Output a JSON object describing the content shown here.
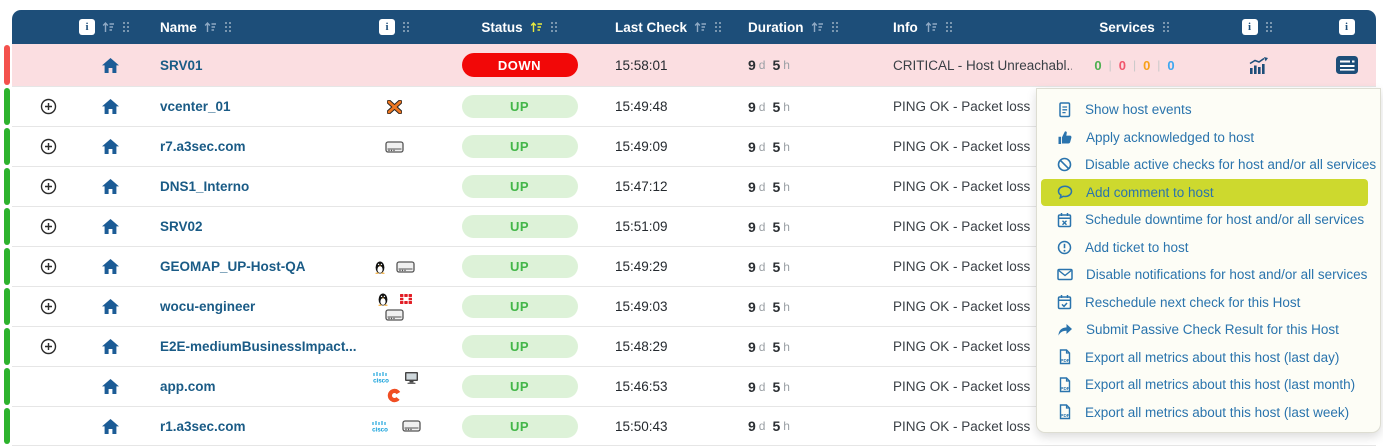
{
  "header": {
    "info_badge": "i",
    "columns": {
      "name": "Name",
      "status": "Status",
      "last_check": "Last Check",
      "duration": "Duration",
      "info": "Info",
      "services": "Services"
    }
  },
  "duration_units": {
    "days": "d",
    "hours": "h"
  },
  "rows": [
    {
      "name": "SRV01",
      "expand": false,
      "os_icons": [],
      "status": "DOWN",
      "status_style": "down",
      "last_check": "15:58:01",
      "duration_days": "9",
      "duration_hours": "5",
      "info": "CRITICAL - Host Unreachabl...",
      "services_counts": [
        "0",
        "0",
        "0",
        "0"
      ],
      "show_actions": true
    },
    {
      "name": "vcenter_01",
      "expand": true,
      "os_icons": [
        "esx-icon"
      ],
      "status": "UP",
      "status_style": "up",
      "last_check": "15:49:48",
      "duration_days": "9",
      "duration_hours": "5",
      "info": "PING OK - Packet loss",
      "services_counts": [],
      "show_actions": false
    },
    {
      "name": "r7.a3sec.com",
      "expand": true,
      "os_icons": [
        "server-icon"
      ],
      "status": "UP",
      "status_style": "up",
      "last_check": "15:49:09",
      "duration_days": "9",
      "duration_hours": "5",
      "info": "PING OK - Packet loss",
      "services_counts": [],
      "show_actions": false
    },
    {
      "name": "DNS1_Interno",
      "expand": true,
      "os_icons": [],
      "status": "UP",
      "status_style": "up",
      "last_check": "15:47:12",
      "duration_days": "9",
      "duration_hours": "5",
      "info": "PING OK - Packet loss",
      "services_counts": [],
      "show_actions": false
    },
    {
      "name": "SRV02",
      "expand": true,
      "os_icons": [],
      "status": "UP",
      "status_style": "up",
      "last_check": "15:51:09",
      "duration_days": "9",
      "duration_hours": "5",
      "info": "PING OK - Packet loss",
      "services_counts": [],
      "show_actions": false
    },
    {
      "name": "GEOMAP_UP-Host-QA",
      "expand": true,
      "os_icons": [
        "linux-icon",
        "server-icon"
      ],
      "status": "UP",
      "status_style": "up",
      "last_check": "15:49:29",
      "duration_days": "9",
      "duration_hours": "5",
      "info": "PING OK - Packet loss",
      "services_counts": [],
      "show_actions": false
    },
    {
      "name": "wocu-engineer",
      "expand": true,
      "os_icons": [
        "linux-icon",
        "fortinet-icon",
        "server-icon"
      ],
      "status": "UP",
      "status_style": "up",
      "last_check": "15:49:03",
      "duration_days": "9",
      "duration_hours": "5",
      "info": "PING OK - Packet loss",
      "services_counts": [],
      "show_actions": false
    },
    {
      "name": "E2E-mediumBusinessImpact...",
      "expand": true,
      "os_icons": [],
      "status": "UP",
      "status_style": "up",
      "last_check": "15:48:29",
      "duration_days": "9",
      "duration_hours": "5",
      "info": "PING OK - Packet loss",
      "services_counts": [],
      "show_actions": false
    },
    {
      "name": "app.com",
      "expand": false,
      "os_icons": [
        "cisco-icon",
        "workstation-icon",
        "swirl-icon"
      ],
      "status": "UP",
      "status_style": "up",
      "last_check": "15:46:53",
      "duration_days": "9",
      "duration_hours": "5",
      "info": "PING OK - Packet loss",
      "services_counts": [],
      "show_actions": false
    },
    {
      "name": "r1.a3sec.com",
      "expand": false,
      "os_icons": [
        "cisco-icon",
        "server-icon"
      ],
      "status": "UP",
      "status_style": "up",
      "last_check": "15:50:43",
      "duration_days": "9",
      "duration_hours": "5",
      "info": "PING OK - Packet loss",
      "services_counts": [],
      "show_actions": false
    }
  ],
  "context_menu": {
    "items": [
      {
        "icon": "file-lines-icon",
        "label": "Show host events",
        "highlighted": false
      },
      {
        "icon": "thumbs-up-icon",
        "label": "Apply acknowledged to host",
        "highlighted": false
      },
      {
        "icon": "ban-icon",
        "label": "Disable active checks for host and/or all services",
        "highlighted": false
      },
      {
        "icon": "comment-icon",
        "label": "Add comment to host",
        "highlighted": true
      },
      {
        "icon": "calendar-xmark-icon",
        "label": "Schedule downtime for host and/or all services",
        "highlighted": false
      },
      {
        "icon": "circle-exclamation-icon",
        "label": "Add ticket to host",
        "highlighted": false
      },
      {
        "icon": "envelope-icon",
        "label": "Disable notifications for host and/or all services",
        "highlighted": false
      },
      {
        "icon": "calendar-check-icon",
        "label": "Reschedule next check for this Host",
        "highlighted": false
      },
      {
        "icon": "share-icon",
        "label": "Submit Passive Check Result for this Host",
        "highlighted": false
      },
      {
        "icon": "file-pdf-icon",
        "label": "Export all metrics about this host (last day)",
        "highlighted": false
      },
      {
        "icon": "file-pdf-icon",
        "label": "Export all metrics about this host (last month)",
        "highlighted": false
      },
      {
        "icon": "file-pdf-icon",
        "label": "Export all metrics about this host (last week)",
        "highlighted": false
      }
    ]
  },
  "colors": {
    "header_bg": "#1d4e79",
    "row_down_bg": "#fbdee1",
    "bar_up": "#2db32d",
    "bar_down": "#f4514d",
    "up_badge_bg": "#ddf2d8",
    "up_badge_text": "#43b649",
    "down_badge_bg": "#f20808",
    "down_badge_text": "#ffffff",
    "name_text": "#1a5b86",
    "menu_text": "#2a74ad",
    "menu_highlight": "#cdd92e",
    "status_sort_active": "#e8e93f",
    "count_colors": [
      "#4caf50",
      "#f1556c",
      "#f7a11a",
      "#3fa7f0"
    ]
  }
}
